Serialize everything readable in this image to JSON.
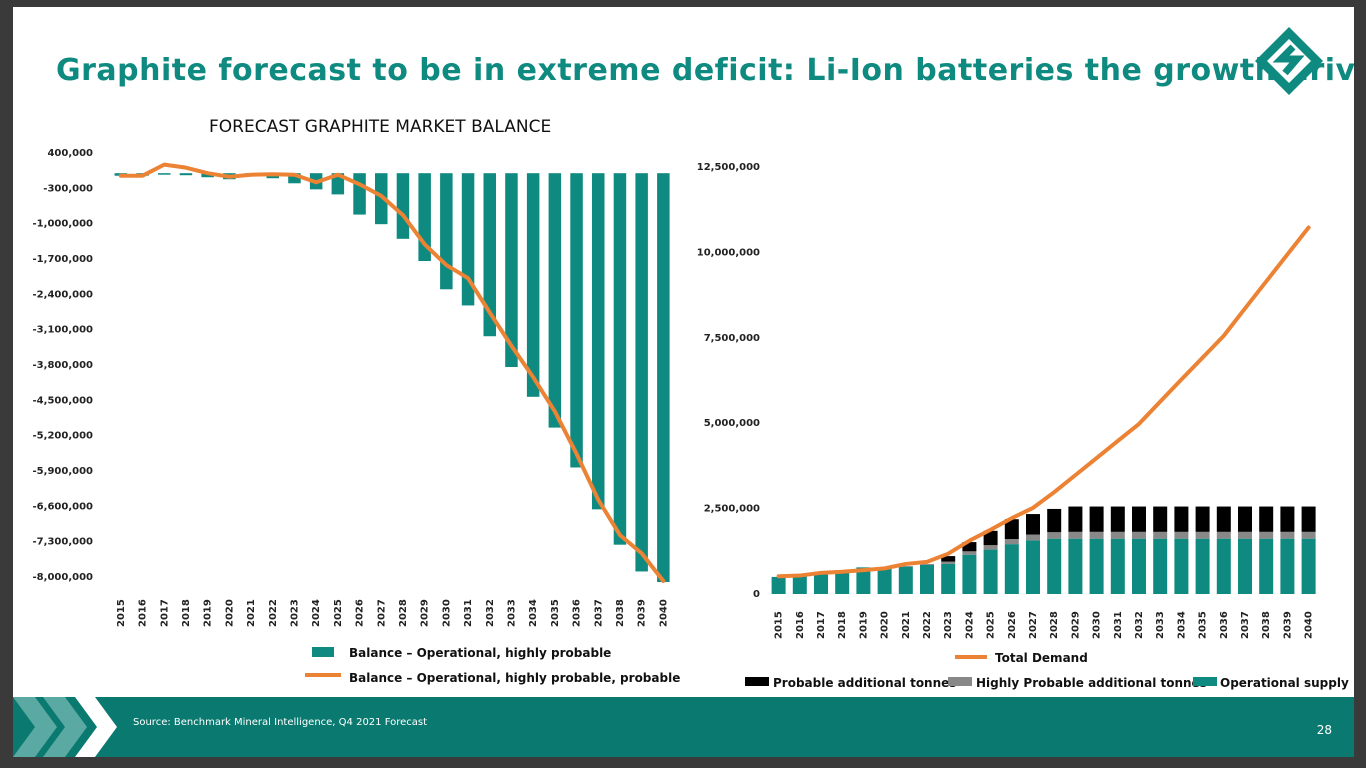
{
  "slide": {
    "title": "Graphite forecast to be in extreme deficit: Li-Ion batteries the growth driver",
    "source": "Source: Benchmark Mineral Intelligence, Q4 2021 Forecast",
    "page_number": "28",
    "colors": {
      "teal": "#0e8a80",
      "orange": "#ec8233",
      "black": "#000000",
      "grey": "#888888",
      "footer": "#0a7a70"
    }
  },
  "chart_data": [
    {
      "type": "bar+line",
      "title": "FORECAST GRAPHITE MARKET BALANCE",
      "categories": [
        "2015",
        "2016",
        "2017",
        "2018",
        "2019",
        "2020",
        "2021",
        "2022",
        "2023",
        "2024",
        "2025",
        "2026",
        "2027",
        "2028",
        "2029",
        "2030",
        "2031",
        "2032",
        "2033",
        "2034",
        "2035",
        "2036",
        "2037",
        "2038",
        "2039",
        "2040"
      ],
      "ytick_labels": [
        "400,000",
        "-300,000",
        "-1,000,000",
        "-1,700,000",
        "-2,400,000",
        "-3,100,000",
        "-3,800,000",
        "-4,500,000",
        "-5,200,000",
        "-5,900,000",
        "-6,600,000",
        "-7,300,000",
        "-8,000,000"
      ],
      "ylim": [
        -8000000,
        400000
      ],
      "series": [
        {
          "name": "Balance – Operational, highly probable",
          "type": "bar",
          "values": [
            -50000,
            -50000,
            -10000,
            -40000,
            -80000,
            -120000,
            -60000,
            -100000,
            -200000,
            -320000,
            -420000,
            -820000,
            -1010000,
            -1300000,
            -1740000,
            -2300000,
            -2620000,
            -3230000,
            -3840000,
            -4430000,
            -5040000,
            -5830000,
            -6660000,
            -7360000,
            -7890000,
            -8100000
          ]
        },
        {
          "name": "Balance – Operational, highly probable, probable",
          "type": "line",
          "values": [
            -50000,
            -50000,
            170000,
            110000,
            0,
            -70000,
            -30000,
            -20000,
            -30000,
            -180000,
            -30000,
            -220000,
            -450000,
            -830000,
            -1410000,
            -1820000,
            -2080000,
            -2760000,
            -3420000,
            -4040000,
            -4720000,
            -5560000,
            -6470000,
            -7170000,
            -7530000,
            -8080000
          ]
        }
      ]
    },
    {
      "type": "stacked-bar+line",
      "categories": [
        "2015",
        "2016",
        "2017",
        "2018",
        "2019",
        "2020",
        "2021",
        "2022",
        "2023",
        "2024",
        "2025",
        "2026",
        "2027",
        "2028",
        "2029",
        "2030",
        "2031",
        "2032",
        "2033",
        "2034",
        "2035",
        "2036",
        "2037",
        "2038",
        "2039",
        "2040"
      ],
      "ytick_labels": [
        "12,500,000",
        "10,000,000",
        "7,500,000",
        "5,000,000",
        "2,500,000",
        "0"
      ],
      "ylim": [
        0,
        12500000
      ],
      "series": [
        {
          "name": "Operational supply",
          "type": "bar",
          "values": [
            500000,
            550000,
            630000,
            700000,
            780000,
            760000,
            800000,
            850000,
            880000,
            1150000,
            1300000,
            1460000,
            1570000,
            1620000,
            1620000,
            1620000,
            1620000,
            1620000,
            1620000,
            1620000,
            1620000,
            1620000,
            1620000,
            1620000,
            1620000,
            1620000
          ]
        },
        {
          "name": "Highly Probable additional tonnes",
          "type": "bar",
          "values": [
            0,
            0,
            0,
            0,
            0,
            0,
            20000,
            30000,
            70000,
            100000,
            130000,
            150000,
            170000,
            190000,
            200000,
            200000,
            200000,
            200000,
            200000,
            200000,
            200000,
            200000,
            200000,
            200000,
            200000,
            200000
          ]
        },
        {
          "name": "Probable additional tonnes",
          "type": "bar",
          "values": [
            0,
            0,
            0,
            0,
            0,
            0,
            0,
            0,
            160000,
            270000,
            420000,
            580000,
            600000,
            680000,
            740000,
            740000,
            740000,
            740000,
            740000,
            740000,
            740000,
            740000,
            740000,
            740000,
            740000,
            740000
          ]
        },
        {
          "name": "Total Demand",
          "type": "line",
          "values": [
            520000,
            540000,
            620000,
            650000,
            700000,
            750000,
            880000,
            940000,
            1180000,
            1560000,
            1880000,
            2220000,
            2520000,
            2980000,
            3480000,
            3980000,
            4480000,
            4980000,
            5630000,
            6280000,
            6920000,
            7560000,
            8360000,
            9150000,
            9940000,
            10730000
          ]
        }
      ]
    }
  ]
}
